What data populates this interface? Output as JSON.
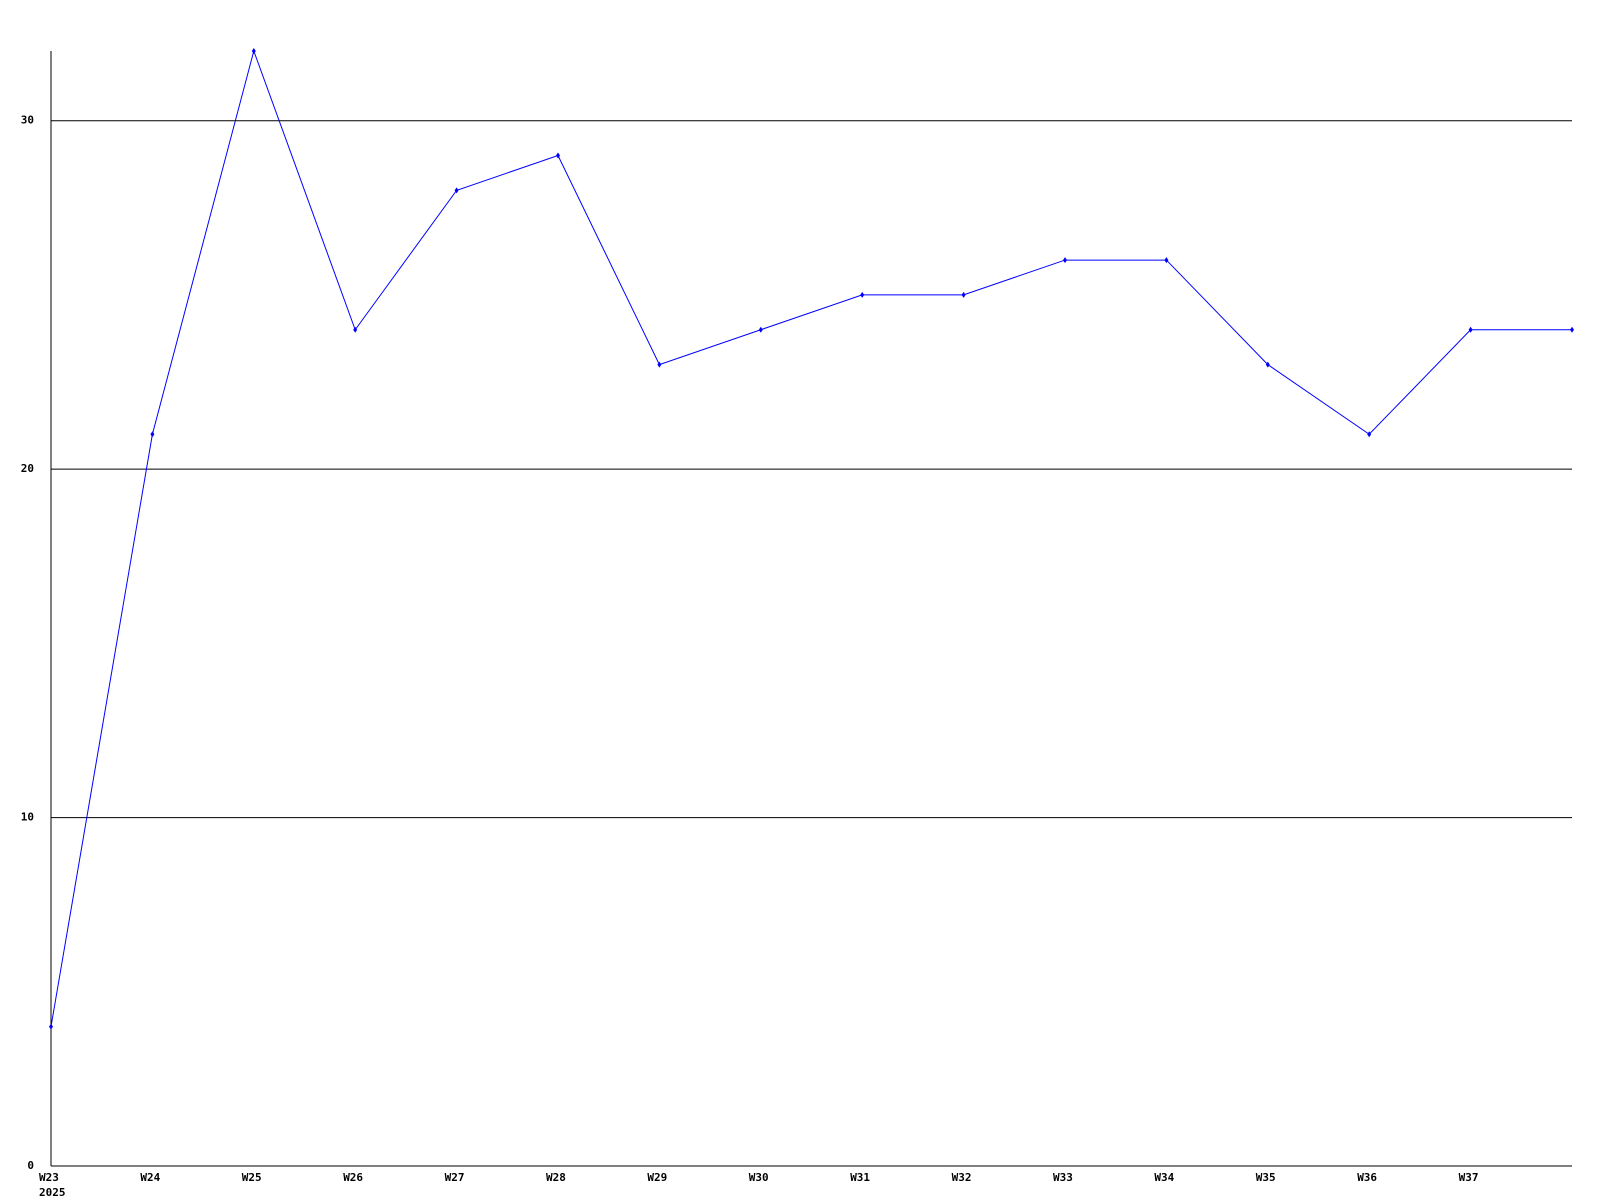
{
  "chart_data": {
    "type": "line",
    "categories": [
      "W23",
      "W24",
      "W25",
      "W26",
      "W27",
      "W28",
      "W29",
      "W30",
      "W31",
      "W32",
      "W33",
      "W34",
      "W35",
      "W36",
      "W37",
      null
    ],
    "year_label": "2025",
    "series": [
      {
        "color": "#0000ff",
        "values": [
          4,
          21,
          32,
          24,
          28,
          29,
          23,
          24,
          25,
          25,
          26,
          26,
          23,
          21,
          24,
          24
        ]
      }
    ],
    "ylim": [
      0,
      32
    ],
    "yticks": [
      0,
      10,
      20,
      30
    ],
    "grid": true
  }
}
